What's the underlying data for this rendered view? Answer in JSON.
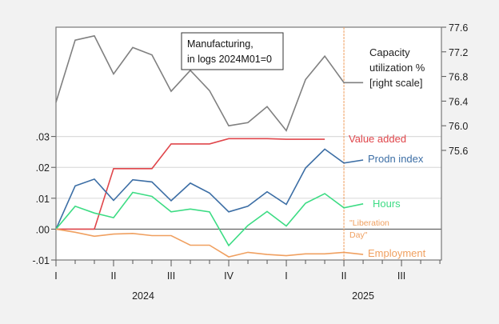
{
  "chart_data": {
    "type": "line",
    "annotation": [
      "Manufacturing,",
      "in logs 2024M01=0"
    ],
    "x": [
      "2024-01",
      "2024-02",
      "2024-03",
      "2024-04",
      "2024-05",
      "2024-06",
      "2024-07",
      "2024-08",
      "2024-09",
      "2024-10",
      "2024-11",
      "2024-12",
      "2025-01",
      "2025-02",
      "2025-03",
      "2025-04",
      "2025-05"
    ],
    "xlim": [
      "2024-01",
      "2025-09"
    ],
    "x_quarter_ticks": [
      "I",
      "II",
      "III",
      "IV",
      "I",
      "II",
      "III"
    ],
    "x_year_labels": [
      "2024",
      "2025"
    ],
    "left_axis": {
      "ylim": [
        -0.01,
        0.0654
      ],
      "ticks": [
        ".03",
        ".02",
        ".01",
        ".00",
        "-.01"
      ],
      "tick_values": [
        0.03,
        0.02,
        0.01,
        0.0,
        -0.01
      ],
      "grid": true
    },
    "right_axis": {
      "ylim": [
        73.82,
        77.6
      ],
      "ticks": [
        "77.6",
        "77.2",
        "76.8",
        "76.4",
        "76.0",
        "75.6"
      ],
      "tick_values": [
        77.6,
        77.2,
        76.8,
        76.4,
        76.0,
        75.6
      ]
    },
    "series": [
      {
        "name": "Capacity utilization % [right scale]",
        "label_lines": [
          "Capacity",
          "utilization %",
          "[right scale]"
        ],
        "axis": "right",
        "color": "#808080",
        "values": [
          76.38,
          77.39,
          77.46,
          76.84,
          77.27,
          77.15,
          76.56,
          76.9,
          76.57,
          76.0,
          76.05,
          76.31,
          75.92,
          76.75,
          77.13,
          76.7,
          76.7
        ]
      },
      {
        "name": "Value added",
        "label_lines": [
          "Value added"
        ],
        "axis": "left",
        "color": "#e0464b",
        "values": [
          0,
          0,
          0,
          0.0196,
          0.0196,
          0.0196,
          0.0276,
          0.0276,
          0.0276,
          0.0293,
          0.0293,
          0.0293,
          0.0291,
          0.0291,
          0.0291,
          null,
          null
        ]
      },
      {
        "name": "Prodn index",
        "label_lines": [
          "Prodn index"
        ],
        "axis": "left",
        "color": "#3c6ea5",
        "values": [
          0,
          0.014,
          0.0162,
          0.0093,
          0.016,
          0.0153,
          0.0092,
          0.0149,
          0.0117,
          0.0056,
          0.0074,
          0.0121,
          0.008,
          0.0198,
          0.0259,
          0.0214,
          0.0224
        ]
      },
      {
        "name": "Hours",
        "label_lines": [
          "Hours"
        ],
        "axis": "left",
        "color": "#3ddc84",
        "values": [
          0,
          0.0074,
          0.0052,
          0.0037,
          0.0119,
          0.0106,
          0.0056,
          0.0065,
          0.0056,
          -0.0053,
          0.0012,
          0.0057,
          0.001,
          0.0084,
          0.0115,
          0.0069,
          0.0082
        ]
      },
      {
        "name": "Employment",
        "label_lines": [
          "Employment"
        ],
        "axis": "left",
        "color": "#f0a060",
        "values": [
          0,
          -0.001,
          -0.0023,
          -0.0016,
          -0.0014,
          -0.0021,
          -0.0021,
          -0.0052,
          -0.0052,
          -0.009,
          -0.0075,
          -0.0082,
          -0.0086,
          -0.008,
          -0.008,
          -0.0075,
          -0.0082
        ]
      }
    ],
    "event_line": {
      "x": "2025-04",
      "label_lines": [
        "\"Liberation",
        "Day\""
      ],
      "color": "#f0a060"
    }
  }
}
